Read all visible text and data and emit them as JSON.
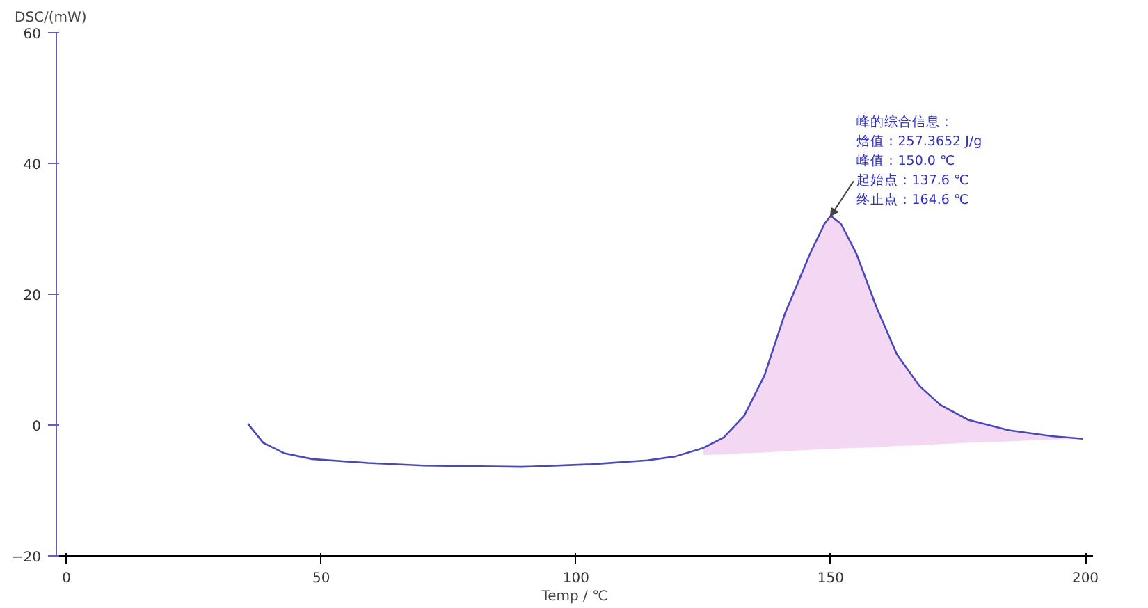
{
  "chart_data": {
    "type": "line",
    "xlabel": "Temp / ℃",
    "ylabel": "DSC/(mW)",
    "xlim": [
      -2,
      201.5
    ],
    "ylim": [
      -20,
      60
    ],
    "xticks": [
      0,
      50,
      100,
      150,
      200
    ],
    "yticks": [
      -20,
      0,
      20,
      40,
      60
    ],
    "grid": false,
    "marker": "none",
    "line_style": "solid",
    "series": [
      {
        "color": "#4848b8",
        "x": [
          35.6,
          38.6,
          42.7,
          48.2,
          59.2,
          70.1,
          89.3,
          103,
          114,
          119.5,
          125,
          129,
          133,
          137,
          141,
          146,
          148.8,
          150,
          152,
          155,
          159,
          163,
          167.4,
          171.5,
          177,
          185,
          193.4,
          199.5
        ],
        "values": [
          0.2,
          -2.7,
          -4.3,
          -5.2,
          -5.8,
          -6.2,
          -6.4,
          -6.0,
          -5.4,
          -4.8,
          -3.5,
          -1.9,
          1.4,
          7.6,
          17,
          26.3,
          30.8,
          32,
          30.8,
          26.3,
          18,
          10.8,
          6,
          3.1,
          0.8,
          -0.8,
          -1.7,
          -2.1
        ],
        "upper": [
          null,
          null,
          null,
          null,
          null,
          null,
          null,
          null,
          null,
          null,
          -3.5,
          -1.9,
          1.4,
          7.6,
          17,
          26.3,
          30.8,
          32,
          30.8,
          26.3,
          18,
          10.8,
          6,
          3.1,
          0.8,
          -0.8,
          -1.7,
          -2.1
        ],
        "lower": [
          null,
          null,
          null,
          null,
          null,
          null,
          null,
          null,
          null,
          null,
          -4.6,
          -4.5,
          -4.3,
          -4.2,
          -4.0,
          -3.8,
          -3.7,
          -3.7,
          -3.6,
          -3.5,
          -3.4,
          -3.2,
          -3.1,
          -2.9,
          -2.7,
          -2.5,
          -2.2,
          -2.1
        ]
      }
    ],
    "annotations": [
      "峰的综合信息：",
      "焓值：257.3652 J/g",
      "峰值：150.0 ℃",
      {
        "text": "起始点：137.6 ℃",
        "x": 150,
        "y": 32
      },
      "终止点：164.6 ℃"
    ]
  }
}
